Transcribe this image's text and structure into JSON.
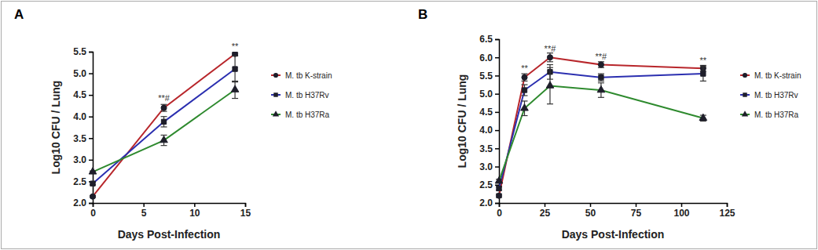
{
  "chart_data": [
    {
      "type": "line",
      "title": "A",
      "x_label": "Days Post-Infection",
      "y_label": "Log10 CFU / Lung",
      "x": [
        0,
        7,
        14
      ],
      "xlim": [
        0,
        15
      ],
      "xticks": [
        0,
        5,
        10,
        15
      ],
      "ylim": [
        2,
        5.5
      ],
      "yticks": [
        {
          "value": 2,
          "label": "2.0"
        },
        {
          "value": 2.5,
          "label": "2.5"
        },
        {
          "value": 3,
          "label": "3.0"
        },
        {
          "value": 3.5,
          "label": "3.5"
        },
        {
          "value": 4,
          "label": "4.0"
        },
        {
          "value": 4.5,
          "label": "4.5"
        },
        {
          "value": 5,
          "label": "5.0"
        },
        {
          "value": 5.5,
          "label": "5.5"
        }
      ],
      "grid": false,
      "legend": "right",
      "series": [
        {
          "name": "M. tb K-strain",
          "color": "#b8262b",
          "marker": "circle",
          "values": [
            2.15,
            4.2,
            5.45
          ],
          "errors": [
            0.02,
            0.08,
            0.03
          ]
        },
        {
          "name": "M. tb H37Rv",
          "color": "#2b2fb0",
          "marker": "square",
          "values": [
            2.45,
            3.88,
            5.1
          ],
          "errors": [
            0.03,
            0.12,
            0.3
          ]
        },
        {
          "name": "M. tb H37Ra",
          "color": "#2e8a2e",
          "marker": "triangle",
          "values": [
            2.72,
            3.45,
            4.62
          ],
          "errors": [
            0.02,
            0.12,
            0.2
          ]
        }
      ],
      "annotations": [
        {
          "text": "**#",
          "x": 7,
          "y": 4.36
        },
        {
          "text": "**",
          "x": 14,
          "y": 5.55
        }
      ]
    },
    {
      "type": "line",
      "title": "B",
      "x_label": "Days Post-Infection",
      "y_label": "Log10 CFU / Lung",
      "x": [
        0,
        14,
        28,
        56,
        112
      ],
      "xlim": [
        0,
        125
      ],
      "xticks": [
        0,
        25,
        50,
        75,
        100,
        125
      ],
      "ylim": [
        2,
        6.5
      ],
      "yticks": [
        {
          "value": 2,
          "label": "2.0"
        },
        {
          "value": 2.5,
          "label": "2.5"
        },
        {
          "value": 3,
          "label": "3.0"
        },
        {
          "value": 3.5,
          "label": "3.5"
        },
        {
          "value": 4,
          "label": "4.0"
        },
        {
          "value": 4.5,
          "label": "4.5"
        },
        {
          "value": 5,
          "label": "5.0"
        },
        {
          "value": 5.5,
          "label": "5.5"
        },
        {
          "value": 6,
          "label": "6.0"
        },
        {
          "value": 6.5,
          "label": "6.5"
        }
      ],
      "grid": false,
      "legend": "right",
      "series": [
        {
          "name": "M. tb K-strain",
          "color": "#b8262b",
          "marker": "circle",
          "values": [
            2.2,
            5.45,
            6.0,
            5.8,
            5.7
          ],
          "errors": [
            0.05,
            0.1,
            0.12,
            0.08,
            0.08
          ]
        },
        {
          "name": "M. tb H37Rv",
          "color": "#2b2fb0",
          "marker": "square",
          "values": [
            2.4,
            5.1,
            5.6,
            5.45,
            5.55
          ],
          "errors": [
            0.05,
            0.15,
            0.2,
            0.1,
            0.2
          ]
        },
        {
          "name": "M. tb H37Ra",
          "color": "#2e8a2e",
          "marker": "triangle",
          "values": [
            2.6,
            4.6,
            5.22,
            5.1,
            4.33
          ],
          "errors": [
            0.05,
            0.2,
            0.5,
            0.2,
            0.08
          ]
        }
      ],
      "annotations": [
        {
          "text": "**",
          "x": 14,
          "y": 5.62
        },
        {
          "text": "**#",
          "x": 28,
          "y": 6.16
        },
        {
          "text": "**#",
          "x": 56,
          "y": 5.94
        },
        {
          "text": "**",
          "x": 112,
          "y": 5.84
        }
      ]
    }
  ]
}
